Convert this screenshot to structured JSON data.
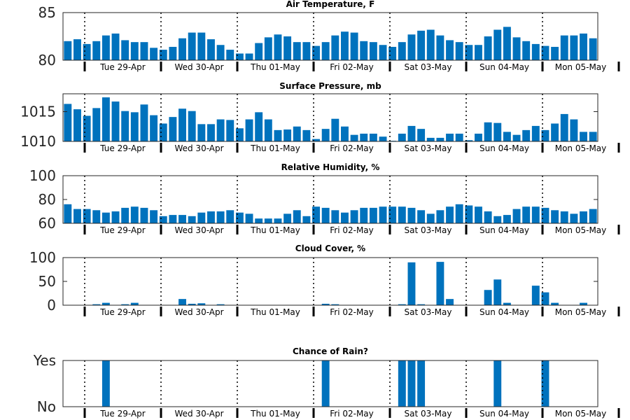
{
  "colors": {
    "bar": "#0072bd",
    "axis": "#262626",
    "background": "#ffffff"
  },
  "day_labels": [
    "Tue 29-Apr",
    "Wed 30-Apr",
    "Thu 01-May",
    "Fri 02-May",
    "Sat 03-May",
    "Sun 04-May",
    "Mon 05-May"
  ],
  "chart_data": [
    {
      "type": "bar",
      "title": "Air Temperature, F",
      "ylim": [
        80,
        85
      ],
      "yticks": [
        80,
        85
      ],
      "ytick_labels": [
        "80",
        "85"
      ],
      "values": [
        82.0,
        82.2,
        81.7,
        82.0,
        82.6,
        82.8,
        82.1,
        81.9,
        81.9,
        81.3,
        81.1,
        81.4,
        82.3,
        82.9,
        82.9,
        82.2,
        81.6,
        81.1,
        80.7,
        80.7,
        81.8,
        82.4,
        82.7,
        82.5,
        81.9,
        81.9,
        81.5,
        81.9,
        82.6,
        83.0,
        82.9,
        82.0,
        81.9,
        81.6,
        81.4,
        81.9,
        82.7,
        83.1,
        83.2,
        82.6,
        82.1,
        81.9,
        81.6,
        81.6,
        82.5,
        83.2,
        83.5,
        82.4,
        82.0,
        81.7,
        81.5,
        81.4,
        82.6,
        82.6,
        82.8,
        82.3
      ],
      "grid": false
    },
    {
      "type": "bar",
      "title": "Surface Pressure, mb",
      "ylim": [
        1010,
        1018
      ],
      "yticks": [
        1010,
        1015
      ],
      "ytick_labels": [
        "1010",
        "1015"
      ],
      "values": [
        1016.3,
        1015.4,
        1014.3,
        1015.6,
        1017.4,
        1016.7,
        1015.1,
        1014.9,
        1016.2,
        1014.4,
        1013.0,
        1014.1,
        1015.5,
        1015.1,
        1012.9,
        1012.9,
        1013.7,
        1013.6,
        1012.2,
        1013.7,
        1014.9,
        1013.7,
        1011.9,
        1012.0,
        1012.5,
        1011.9,
        1010.4,
        1012.1,
        1013.8,
        1012.5,
        1011.1,
        1011.3,
        1011.3,
        1010.8,
        1010.1,
        1011.3,
        1012.6,
        1012.1,
        1010.6,
        1010.6,
        1011.3,
        1011.3,
        1010.2,
        1011.3,
        1013.2,
        1013.1,
        1011.6,
        1011.1,
        1011.9,
        1012.6,
        1011.9,
        1013.0,
        1014.6,
        1013.7,
        1011.6,
        1011.6
      ],
      "grid": false
    },
    {
      "type": "bar",
      "title": "Relative Humidity, %",
      "ylim": [
        60,
        100
      ],
      "yticks": [
        60,
        80,
        100
      ],
      "ytick_labels": [
        "60",
        "80",
        "100"
      ],
      "values": [
        76,
        72,
        72,
        71,
        69,
        70,
        73,
        74,
        73,
        71,
        66,
        67,
        67,
        66,
        69,
        70,
        70,
        71,
        69,
        68,
        64,
        64,
        64,
        68,
        71,
        66,
        74,
        73,
        71,
        69,
        71,
        73,
        73,
        74,
        74,
        74,
        73,
        71,
        68,
        71,
        74,
        76,
        75,
        74,
        70,
        66,
        67,
        72,
        74,
        74,
        73,
        71,
        70,
        68,
        70,
        72
      ],
      "grid": false
    },
    {
      "type": "bar",
      "title": "Cloud Cover, %",
      "ylim": [
        0,
        100
      ],
      "yticks": [
        0,
        50,
        100
      ],
      "ytick_labels": [
        "0",
        "50",
        "100"
      ],
      "values": [
        0,
        0,
        0,
        2,
        5,
        0,
        2,
        5,
        0,
        0,
        0,
        0,
        13,
        3,
        4,
        0,
        2,
        0,
        0,
        0,
        0,
        0,
        0,
        0,
        0,
        0,
        0,
        3,
        2,
        0,
        0,
        0,
        0,
        0,
        0,
        2,
        90,
        2,
        0,
        91,
        13,
        0,
        0,
        0,
        32,
        54,
        5,
        0,
        0,
        41,
        27,
        5,
        0,
        0,
        5,
        0
      ],
      "grid": false
    },
    {
      "type": "bar",
      "title": "Chance of Rain?",
      "ylim": [
        0,
        1
      ],
      "yticks": [
        0,
        1
      ],
      "ytick_labels": [
        "No",
        "Yes"
      ],
      "values": [
        0,
        0,
        0,
        0,
        1,
        0,
        0,
        0,
        0,
        0,
        0,
        0,
        0,
        0,
        0,
        0,
        0,
        0,
        0,
        0,
        0,
        0,
        0,
        0,
        0,
        0,
        0,
        1,
        0,
        0,
        0,
        0,
        0,
        0,
        0,
        1,
        1,
        1,
        0,
        0,
        0,
        0,
        0,
        0,
        0,
        1,
        0,
        0,
        0,
        0,
        1,
        0,
        0,
        0,
        0,
        0
      ],
      "grid": false
    }
  ]
}
